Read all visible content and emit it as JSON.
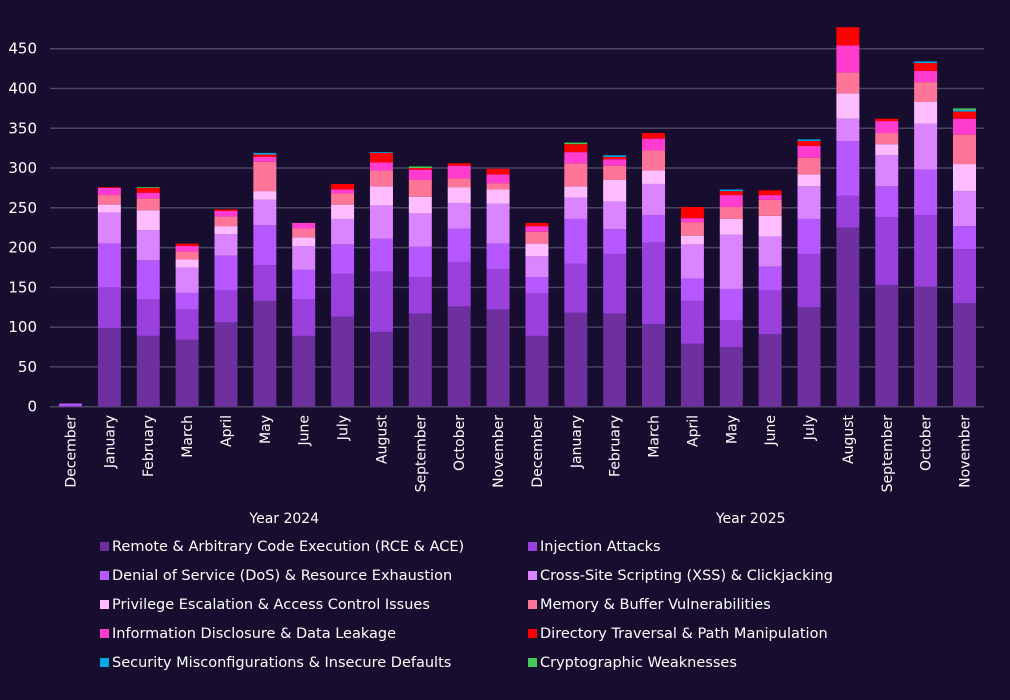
{
  "chart_data": {
    "type": "bar",
    "stacked": true,
    "title": "",
    "xlabel": "",
    "ylabel": "",
    "ylim": [
      0,
      480
    ],
    "yticks": [
      0,
      50,
      100,
      150,
      200,
      250,
      300,
      350,
      400,
      450
    ],
    "grid": true,
    "legend_position": "bottom",
    "groups": [
      {
        "label": "Year 2024",
        "start": 0,
        "end": 11
      },
      {
        "label": "Year 2025",
        "start": 12,
        "end": 23
      }
    ],
    "categories": [
      "December",
      "January",
      "February",
      "March",
      "April",
      "May",
      "June",
      "July",
      "August",
      "September",
      "October",
      "November",
      "December",
      "January",
      "February",
      "March",
      "April",
      "May",
      "June",
      "July",
      "August",
      "September",
      "October",
      "November"
    ],
    "series": [
      {
        "name": "Remote & Arbitrary Code Execution (RCE & ACE)",
        "color": "#6e309e",
        "values": [
          0,
          99,
          89,
          84,
          106,
          133,
          89,
          113,
          94,
          117,
          126,
          122,
          89,
          118,
          117,
          104,
          79,
          75,
          91,
          125,
          225,
          153,
          151,
          130
        ]
      },
      {
        "name": "Injection Attacks",
        "color": "#9940dd",
        "values": [
          1,
          51,
          46,
          38,
          40,
          45,
          46,
          54,
          76,
          46,
          56,
          51,
          53,
          62,
          75,
          102,
          54,
          34,
          55,
          67,
          40,
          85,
          90,
          68
        ]
      },
      {
        "name": "Denial of Service (DoS) & Resource Exhaustion",
        "color": "#b657ff",
        "values": [
          3,
          55,
          49,
          21,
          44,
          50,
          37,
          37,
          41,
          38,
          42,
          32,
          21,
          56,
          31,
          35,
          28,
          39,
          30,
          44,
          69,
          39,
          57,
          29
        ]
      },
      {
        "name": "Cross-Site Scripting (XSS) & Clickjacking",
        "color": "#da85ff",
        "values": [
          0,
          39,
          38,
          32,
          27,
          32,
          30,
          32,
          42,
          42,
          32,
          50,
          26,
          27,
          35,
          39,
          43,
          68,
          38,
          41,
          28,
          39,
          58,
          44
        ]
      },
      {
        "name": "Privilege Escalation & Access Control Issues",
        "color": "#ffbcff",
        "values": [
          0,
          10,
          25,
          10,
          10,
          11,
          11,
          18,
          24,
          21,
          20,
          18,
          16,
          14,
          27,
          17,
          11,
          20,
          26,
          15,
          32,
          14,
          27,
          34
        ]
      },
      {
        "name": "Memory & Buffer Vulnerabilities",
        "color": "#ff7597",
        "values": [
          0,
          12,
          15,
          10,
          12,
          37,
          11,
          14,
          20,
          21,
          11,
          8,
          15,
          29,
          18,
          25,
          17,
          15,
          20,
          21,
          26,
          14,
          25,
          37
        ]
      },
      {
        "name": "Information Disclosure & Data Leakage",
        "color": "#ff3ccf",
        "values": [
          0,
          9,
          7,
          7,
          7,
          6,
          7,
          5,
          10,
          13,
          16,
          11,
          7,
          14,
          8,
          15,
          5,
          15,
          6,
          15,
          34,
          15,
          14,
          20
        ]
      },
      {
        "name": "Directory Traversal & Path Manipulation",
        "color": "#ff0000",
        "values": [
          0,
          1,
          6,
          3,
          2,
          3,
          0,
          7,
          12,
          2,
          3,
          7,
          4,
          10,
          3,
          7,
          14,
          5,
          6,
          6,
          23,
          3,
          10,
          9
        ]
      },
      {
        "name": "Security Misconfigurations & Insecure Defaults",
        "color": "#00a8e6",
        "values": [
          0,
          0,
          0,
          0,
          0,
          2,
          0,
          0,
          1,
          0,
          0,
          0,
          0,
          0,
          2,
          0,
          0,
          2,
          0,
          2,
          0,
          0,
          2,
          2
        ]
      },
      {
        "name": "Cryptographic Weaknesses",
        "color": "#44c85a",
        "values": [
          0,
          0,
          1,
          0,
          0,
          0,
          0,
          0,
          0,
          2,
          0,
          0,
          0,
          2,
          0,
          0,
          0,
          0,
          0,
          0,
          0,
          0,
          0,
          2
        ]
      }
    ]
  },
  "colors": {
    "background": "#160d2f",
    "grid": "#4a4560",
    "text": "#ffffff"
  }
}
